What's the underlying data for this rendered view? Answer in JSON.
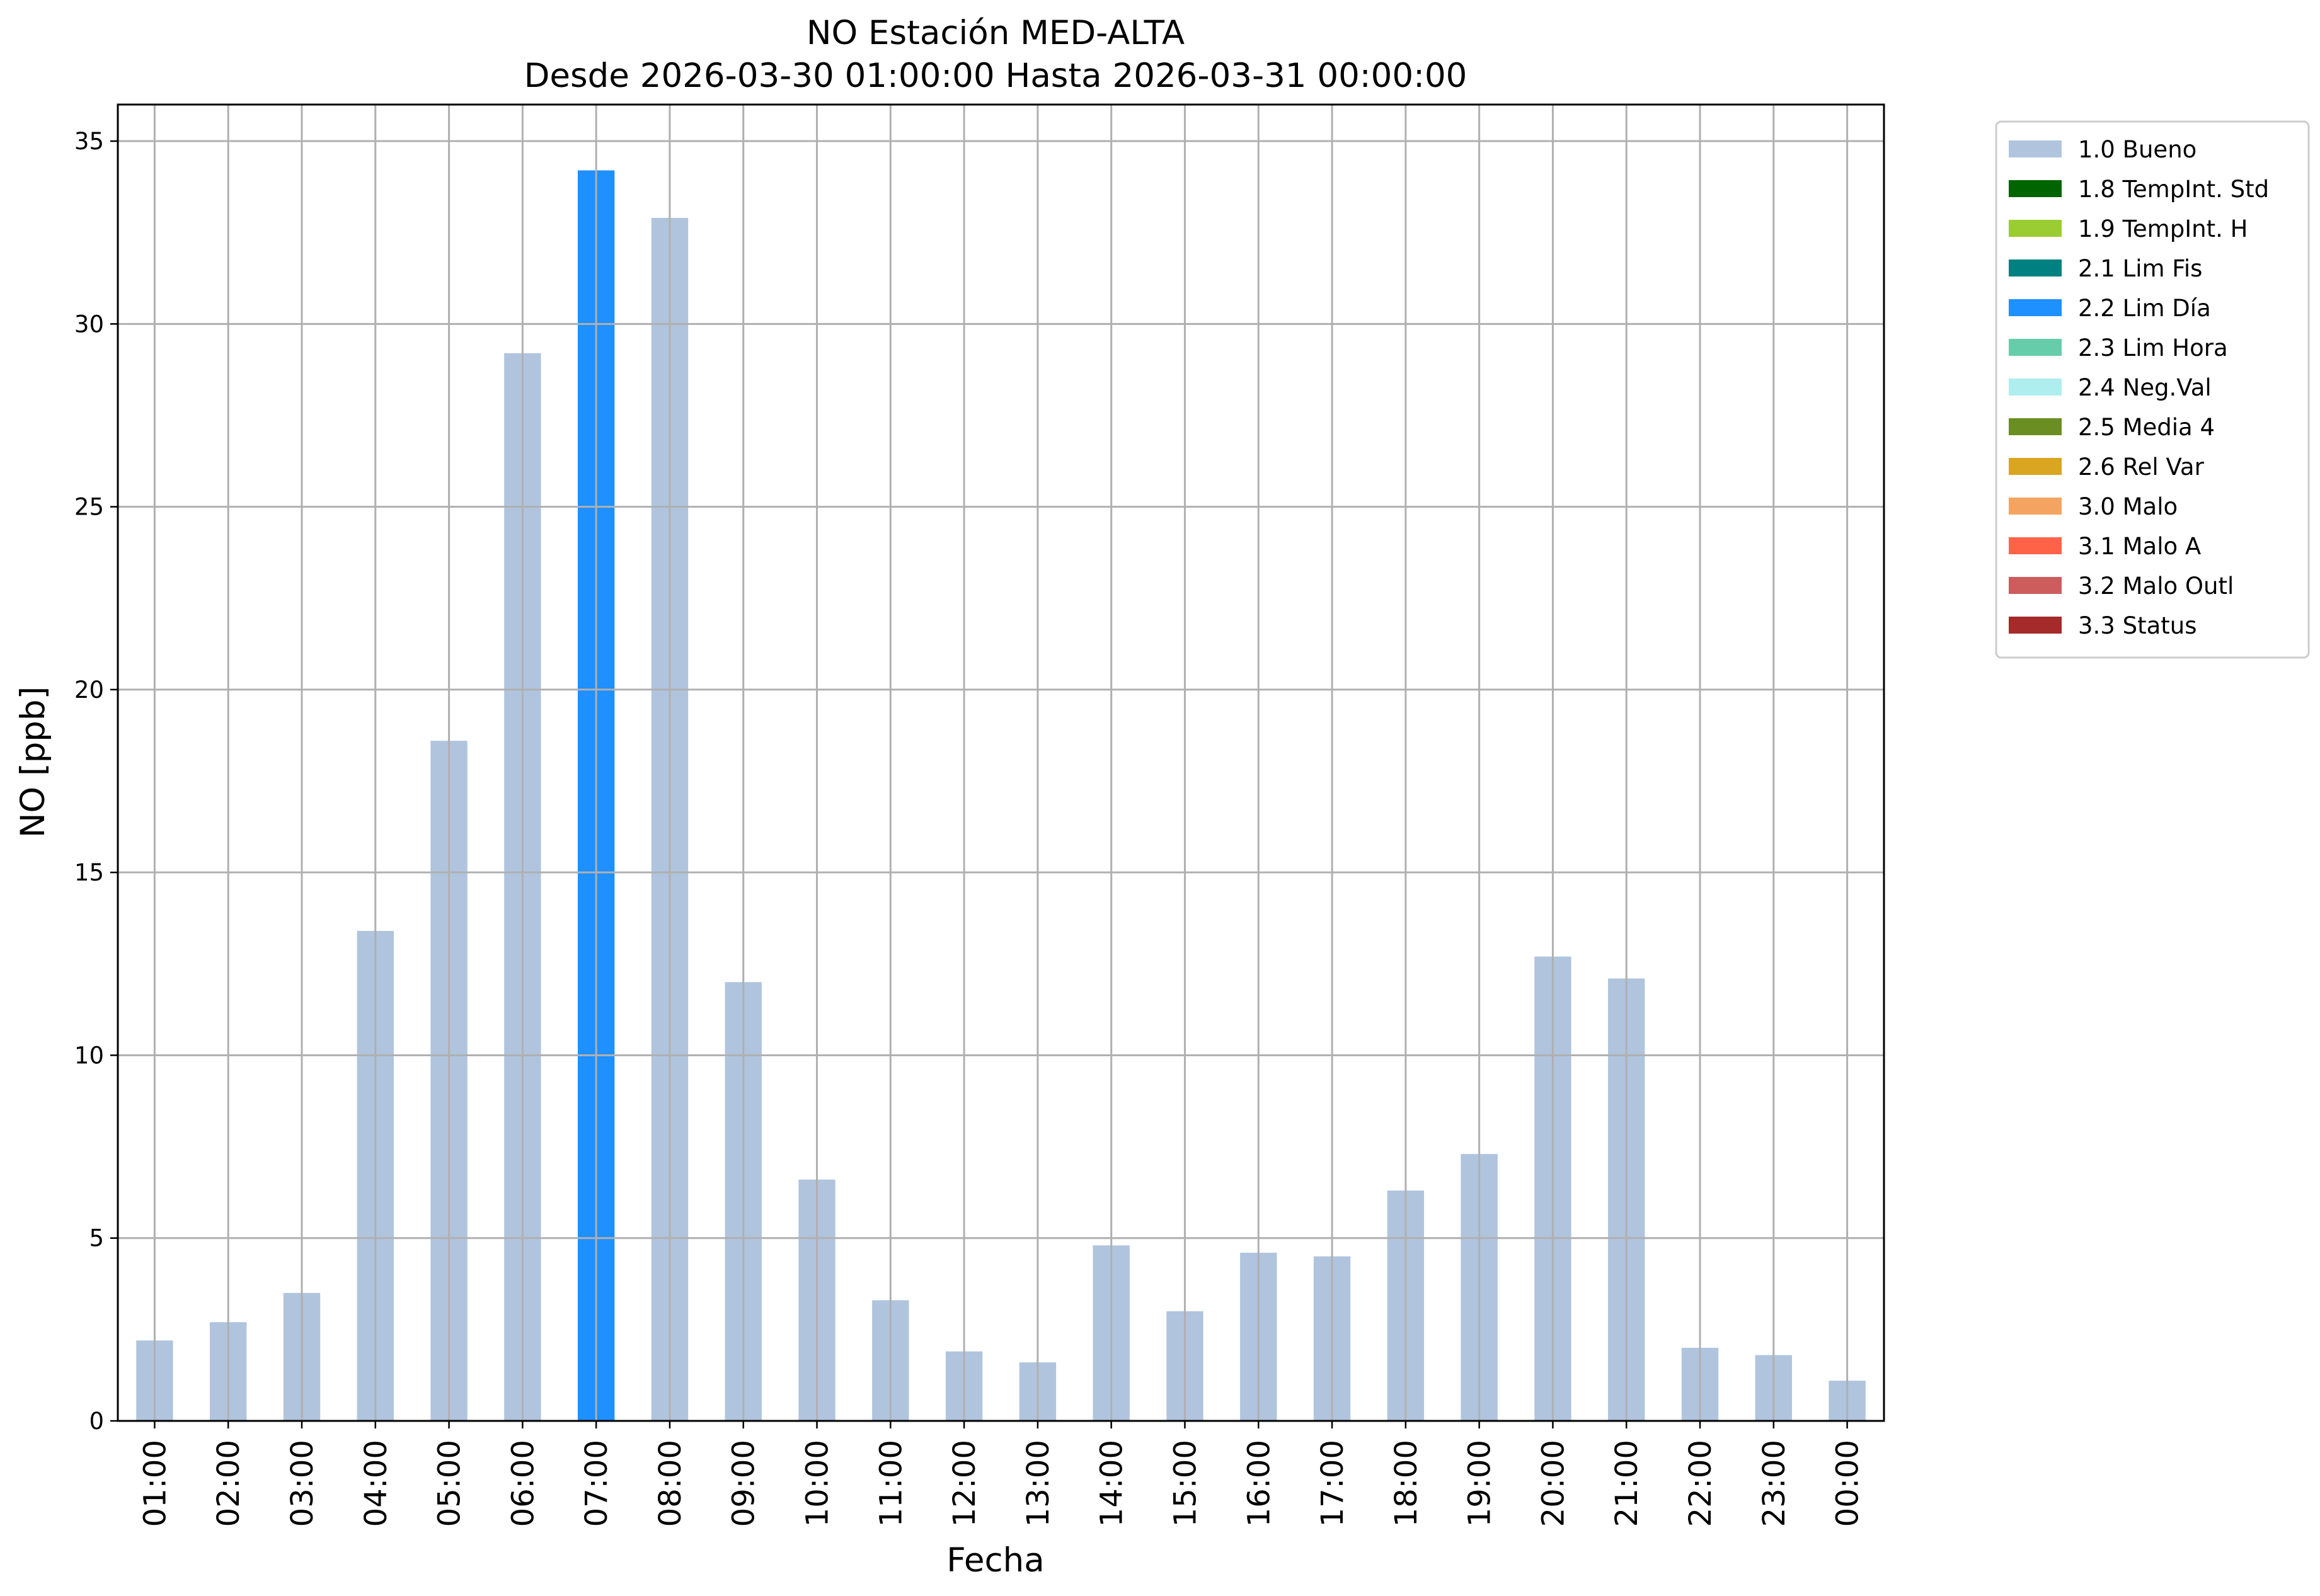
{
  "chart_data": {
    "type": "bar",
    "title": "NO Estación MED-ALTA",
    "subtitle": "Desde 2026-03-30 01:00:00 Hasta 2026-03-31 00:00:00",
    "xlabel": "Fecha",
    "ylabel": "NO [ppb]",
    "ylim": [
      0,
      36
    ],
    "yticks": [
      0,
      5,
      10,
      15,
      20,
      25,
      30,
      35
    ],
    "grid": true,
    "legend_position": "outside-top-right",
    "categories": [
      "01:00",
      "02:00",
      "03:00",
      "04:00",
      "05:00",
      "06:00",
      "07:00",
      "08:00",
      "09:00",
      "10:00",
      "11:00",
      "12:00",
      "13:00",
      "14:00",
      "15:00",
      "16:00",
      "17:00",
      "18:00",
      "19:00",
      "20:00",
      "21:00",
      "22:00",
      "23:00",
      "00:00"
    ],
    "values": [
      2.2,
      2.7,
      3.5,
      13.4,
      18.6,
      29.2,
      34.2,
      32.9,
      12.0,
      6.6,
      3.3,
      1.9,
      1.6,
      4.8,
      3.0,
      4.6,
      4.5,
      6.3,
      7.3,
      12.7,
      12.1,
      2.0,
      1.8,
      1.1
    ],
    "flags": [
      "1.0 Bueno",
      "1.0 Bueno",
      "1.0 Bueno",
      "1.0 Bueno",
      "1.0 Bueno",
      "1.0 Bueno",
      "2.2 Lim Día",
      "1.0 Bueno",
      "1.0 Bueno",
      "1.0 Bueno",
      "1.0 Bueno",
      "1.0 Bueno",
      "1.0 Bueno",
      "1.0 Bueno",
      "1.0 Bueno",
      "1.0 Bueno",
      "1.0 Bueno",
      "1.0 Bueno",
      "1.0 Bueno",
      "1.0 Bueno",
      "1.0 Bueno",
      "1.0 Bueno",
      "1.0 Bueno",
      "1.0 Bueno"
    ],
    "legend": [
      {
        "label": "1.0 Bueno",
        "color": "#b0c4de"
      },
      {
        "label": "1.8 TempInt. Std",
        "color": "#006400"
      },
      {
        "label": "1.9 TempInt. H",
        "color": "#9acd32"
      },
      {
        "label": "2.1 Lim Fis",
        "color": "#008080"
      },
      {
        "label": "2.2 Lim Día",
        "color": "#1e90ff"
      },
      {
        "label": "2.3 Lim Hora",
        "color": "#66cdaa"
      },
      {
        "label": "2.4 Neg.Val",
        "color": "#afeeee"
      },
      {
        "label": "2.5 Media 4",
        "color": "#6b8e23"
      },
      {
        "label": "2.6 Rel Var",
        "color": "#daa520"
      },
      {
        "label": "3.0 Malo",
        "color": "#f4a460"
      },
      {
        "label": "3.1 Malo A",
        "color": "#ff6347"
      },
      {
        "label": "3.2 Malo Outl",
        "color": "#cd5c5c"
      },
      {
        "label": "3.3 Status",
        "color": "#a52a2a"
      }
    ]
  }
}
